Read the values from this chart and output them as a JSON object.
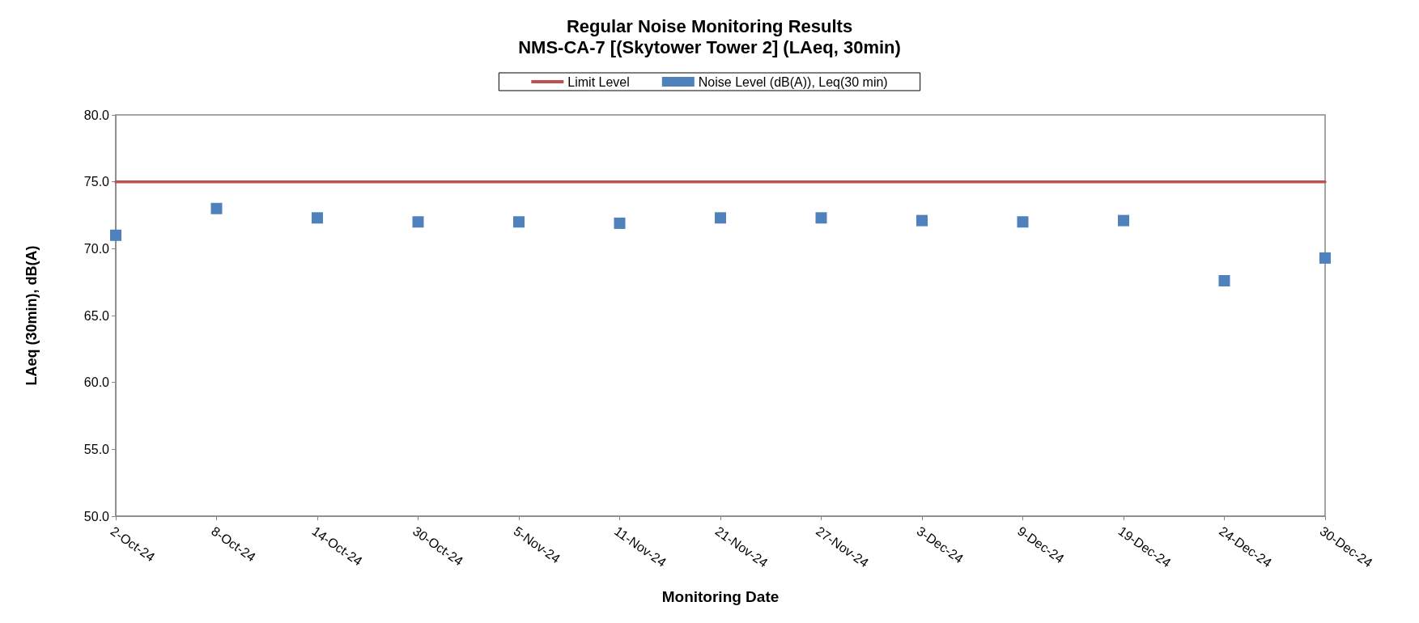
{
  "chart_data": {
    "type": "scatter",
    "title": "Regular Noise Monitoring Results",
    "subtitle": "NMS-CA-7 [(Skytower Tower 2] (LAeq, 30min)",
    "xlabel": "Monitoring Date",
    "ylabel": "LAeq (30min), dB(A)",
    "categories": [
      "2-Oct-24",
      "8-Oct-24",
      "14-Oct-24",
      "30-Oct-24",
      "5-Nov-24",
      "11-Nov-24",
      "21-Nov-24",
      "27-Nov-24",
      "3-Dec-24",
      "9-Dec-24",
      "19-Dec-24",
      "24-Dec-24",
      "30-Dec-24"
    ],
    "series": [
      {
        "name": "Limit Level",
        "type": "line",
        "color": "#c0504d",
        "marker": "none",
        "line_style": "solid",
        "values": [
          75,
          75,
          75,
          75,
          75,
          75,
          75,
          75,
          75,
          75,
          75,
          75,
          75
        ]
      },
      {
        "name": "Noise Level (dB(A)), Leq(30 min)",
        "type": "scatter",
        "color": "#4f81bd",
        "marker": "square",
        "values": [
          71.0,
          73.0,
          72.3,
          72.0,
          72.0,
          71.9,
          72.3,
          72.3,
          72.1,
          72.0,
          72.1,
          67.6,
          69.3
        ]
      }
    ],
    "ylim": [
      50,
      80
    ],
    "yticks": [
      {
        "value": 50,
        "label": "50.0"
      },
      {
        "value": 55,
        "label": "55.0"
      },
      {
        "value": 60,
        "label": "60.0"
      },
      {
        "value": 65,
        "label": "65.0"
      },
      {
        "value": 70,
        "label": "70.0"
      },
      {
        "value": 75,
        "label": "75.0"
      },
      {
        "value": 80,
        "label": "80.0"
      }
    ],
    "grid": false,
    "legend": "top"
  }
}
